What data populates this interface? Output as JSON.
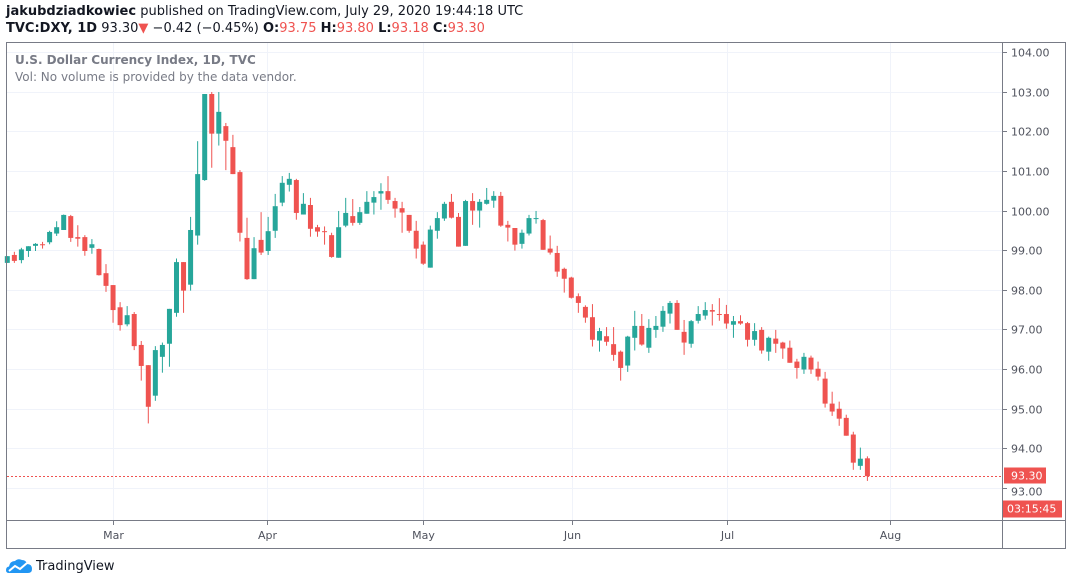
{
  "header": {
    "author": "jakubdziadkowiec",
    "published_text": "published on TradingView.com, July 29, 2020 19:44:18 UTC",
    "symbol": "TVC:DXY, 1D",
    "last": "93.30",
    "change": "−0.42 (−0.45%)",
    "o_label": "O:",
    "o": "93.75",
    "h_label": "H:",
    "h": "93.80",
    "l_label": "L:",
    "l": "93.18",
    "c_label": "C:",
    "c": "93.30"
  },
  "legend": {
    "title": "U.S. Dollar Currency Index, 1D, TVC",
    "volume_note": "Vol: No volume is provided by the data vendor."
  },
  "price_axis": {
    "last_price_label": "93.30",
    "countdown": "03:15:45"
  },
  "footer": {
    "brand": "TradingView"
  },
  "colors": {
    "up": "#26a69a",
    "down": "#ef5350",
    "grid": "#f0f3fa",
    "border": "#787b86"
  },
  "chart_data": {
    "type": "candlestick",
    "title": "U.S. Dollar Currency Index, 1D, TVC",
    "ylim": [
      92.25,
      104.25
    ],
    "yticks": [
      104,
      103,
      102,
      101,
      100,
      99,
      98,
      97,
      96,
      95,
      94,
      93
    ],
    "ytick_labels": [
      "104.00",
      "103.00",
      "102.00",
      "101.00",
      "100.00",
      "99.00",
      "98.00",
      "97.00",
      "96.00",
      "95.00",
      "94.00",
      "93.00"
    ],
    "xticks": [
      {
        "label": "Mar",
        "index": 15.0
      },
      {
        "label": "Apr",
        "index": 36.9
      },
      {
        "label": "May",
        "index": 59.0
      },
      {
        "label": "Jun",
        "index": 80.1
      },
      {
        "label": "Jul",
        "index": 102.1
      },
      {
        "label": "Aug",
        "index": 125.2
      }
    ],
    "last_price": 93.3,
    "ohlc_order": [
      "open",
      "high",
      "low",
      "close"
    ],
    "candles": [
      [
        98.68,
        98.85,
        98.68,
        98.85
      ],
      [
        98.88,
        98.96,
        98.68,
        98.73
      ],
      [
        98.75,
        99.06,
        98.67,
        99.02
      ],
      [
        98.98,
        99.1,
        98.83,
        99.1
      ],
      [
        99.11,
        99.18,
        98.98,
        99.16
      ],
      [
        99.15,
        99.21,
        99.04,
        99.14
      ],
      [
        99.2,
        99.49,
        99.15,
        99.46
      ],
      [
        99.42,
        99.73,
        99.36,
        99.58
      ],
      [
        99.51,
        99.9,
        99.51,
        99.89
      ],
      [
        99.86,
        99.89,
        99.21,
        99.31
      ],
      [
        99.33,
        99.63,
        99.09,
        99.29
      ],
      [
        99.33,
        99.38,
        98.86,
        98.98
      ],
      [
        99.06,
        99.28,
        98.91,
        99.15
      ],
      [
        99.03,
        99.04,
        98.36,
        98.37
      ],
      [
        98.42,
        98.65,
        97.95,
        98.1
      ],
      [
        98.12,
        98.12,
        97.17,
        97.49
      ],
      [
        97.56,
        97.69,
        96.97,
        97.11
      ],
      [
        97.13,
        97.59,
        97.08,
        97.36
      ],
      [
        97.39,
        97.44,
        96.48,
        96.58
      ],
      [
        96.61,
        96.71,
        95.71,
        96.08
      ],
      [
        96.1,
        96.1,
        94.63,
        95.05
      ],
      [
        95.33,
        96.58,
        95.2,
        96.48
      ],
      [
        96.31,
        96.67,
        95.91,
        96.61
      ],
      [
        96.64,
        97.52,
        96.06,
        97.52
      ],
      [
        97.42,
        98.79,
        97.32,
        98.7
      ],
      [
        98.7,
        98.7,
        97.42,
        97.98
      ],
      [
        98.13,
        99.84,
        97.98,
        99.51
      ],
      [
        99.37,
        101.75,
        99.14,
        100.92
      ],
      [
        100.77,
        102.94,
        100.75,
        102.94
      ],
      [
        102.94,
        102.99,
        101.08,
        101.94
      ],
      [
        101.94,
        102.99,
        101.64,
        102.49
      ],
      [
        102.13,
        102.21,
        101.02,
        101.76
      ],
      [
        101.6,
        101.91,
        100.92,
        100.92
      ],
      [
        100.97,
        101.02,
        99.22,
        99.44
      ],
      [
        99.31,
        99.82,
        98.25,
        98.27
      ],
      [
        98.27,
        99.33,
        98.27,
        99.05
      ],
      [
        99.26,
        99.96,
        98.88,
        98.94
      ],
      [
        98.98,
        99.84,
        98.88,
        99.48
      ],
      [
        99.49,
        100.42,
        99.31,
        100.11
      ],
      [
        100.2,
        100.87,
        100.11,
        100.7
      ],
      [
        100.65,
        100.95,
        100.48,
        100.8
      ],
      [
        100.77,
        100.8,
        99.77,
        99.94
      ],
      [
        99.9,
        100.44,
        99.9,
        100.17
      ],
      [
        100.14,
        100.32,
        99.34,
        99.54
      ],
      [
        99.58,
        99.64,
        99.34,
        99.47
      ],
      [
        99.48,
        99.6,
        99.14,
        99.47
      ],
      [
        99.38,
        99.44,
        98.81,
        98.83
      ],
      [
        98.81,
        99.99,
        98.81,
        99.58
      ],
      [
        99.62,
        100.32,
        99.58,
        99.94
      ],
      [
        99.86,
        100.29,
        99.62,
        99.69
      ],
      [
        99.69,
        100.09,
        99.64,
        99.96
      ],
      [
        99.92,
        100.49,
        99.92,
        100.22
      ],
      [
        100.2,
        100.49,
        99.9,
        100.34
      ],
      [
        100.43,
        100.69,
        100.02,
        100.49
      ],
      [
        100.49,
        100.87,
        100.17,
        100.27
      ],
      [
        100.24,
        100.32,
        99.82,
        100.05
      ],
      [
        100.06,
        100.22,
        99.44,
        99.95
      ],
      [
        99.89,
        99.89,
        99.44,
        99.49
      ],
      [
        99.49,
        99.74,
        98.79,
        99.04
      ],
      [
        99.14,
        99.22,
        98.63,
        98.66
      ],
      [
        98.56,
        99.62,
        98.56,
        99.52
      ],
      [
        99.49,
        99.96,
        99.29,
        99.81
      ],
      [
        99.8,
        100.22,
        99.74,
        100.17
      ],
      [
        100.22,
        100.42,
        99.8,
        99.82
      ],
      [
        99.84,
        99.94,
        99.09,
        99.09
      ],
      [
        99.11,
        100.27,
        99.11,
        100.24
      ],
      [
        100.24,
        100.44,
        99.64,
        100.0
      ],
      [
        100.0,
        100.29,
        99.57,
        100.22
      ],
      [
        100.17,
        100.57,
        100.15,
        100.27
      ],
      [
        100.25,
        100.49,
        100.07,
        100.37
      ],
      [
        100.37,
        100.47,
        99.59,
        99.62
      ],
      [
        99.64,
        99.74,
        99.22,
        99.57
      ],
      [
        99.56,
        99.56,
        98.99,
        99.14
      ],
      [
        99.16,
        99.52,
        99.04,
        99.44
      ],
      [
        99.42,
        99.89,
        99.37,
        99.81
      ],
      [
        99.79,
        99.99,
        99.67,
        99.81
      ],
      [
        99.76,
        99.79,
        99.01,
        99.01
      ],
      [
        99.04,
        99.37,
        98.89,
        98.94
      ],
      [
        98.93,
        99.11,
        98.33,
        98.46
      ],
      [
        98.53,
        98.56,
        97.93,
        98.28
      ],
      [
        98.31,
        98.33,
        97.78,
        97.8
      ],
      [
        97.84,
        97.91,
        97.42,
        97.67
      ],
      [
        97.57,
        97.61,
        97.17,
        97.3
      ],
      [
        97.31,
        97.64,
        96.57,
        96.74
      ],
      [
        96.72,
        97.04,
        96.44,
        96.96
      ],
      [
        96.83,
        97.06,
        96.59,
        96.69
      ],
      [
        96.63,
        97.06,
        96.21,
        96.36
      ],
      [
        96.44,
        96.47,
        95.71,
        96.03
      ],
      [
        96.09,
        96.84,
        95.93,
        96.82
      ],
      [
        96.79,
        97.47,
        96.47,
        97.09
      ],
      [
        97.09,
        97.39,
        96.59,
        96.62
      ],
      [
        96.54,
        97.26,
        96.41,
        97.04
      ],
      [
        96.99,
        97.34,
        96.79,
        97.09
      ],
      [
        97.07,
        97.59,
        96.94,
        97.47
      ],
      [
        97.4,
        97.72,
        97.15,
        97.67
      ],
      [
        97.67,
        97.74,
        96.99,
        96.99
      ],
      [
        96.94,
        97.24,
        96.36,
        96.67
      ],
      [
        96.64,
        97.24,
        96.54,
        97.21
      ],
      [
        97.22,
        97.59,
        97.15,
        97.39
      ],
      [
        97.35,
        97.69,
        97.25,
        97.49
      ],
      [
        97.49,
        97.64,
        97.1,
        97.45
      ],
      [
        97.39,
        97.79,
        97.22,
        97.37
      ],
      [
        97.39,
        97.62,
        97.02,
        97.15
      ],
      [
        97.12,
        97.34,
        96.79,
        97.21
      ],
      [
        97.21,
        97.36,
        97.12,
        97.15
      ],
      [
        97.16,
        97.19,
        96.57,
        96.74
      ],
      [
        96.74,
        97.16,
        96.59,
        96.96
      ],
      [
        96.99,
        97.06,
        96.39,
        96.47
      ],
      [
        96.44,
        96.82,
        96.21,
        96.79
      ],
      [
        96.77,
        96.99,
        96.41,
        96.64
      ],
      [
        96.67,
        96.69,
        96.26,
        96.52
      ],
      [
        96.54,
        96.72,
        96.16,
        96.16
      ],
      [
        96.19,
        96.26,
        95.76,
        96.03
      ],
      [
        95.99,
        96.41,
        95.88,
        96.31
      ],
      [
        96.29,
        96.34,
        95.88,
        95.99
      ],
      [
        96.01,
        96.19,
        95.71,
        95.81
      ],
      [
        95.76,
        95.93,
        95.03,
        95.13
      ],
      [
        95.13,
        95.43,
        94.82,
        94.93
      ],
      [
        95.0,
        95.18,
        94.57,
        94.75
      ],
      [
        94.77,
        94.85,
        94.32,
        94.32
      ],
      [
        94.35,
        94.42,
        93.46,
        93.64
      ],
      [
        93.56,
        94.02,
        93.46,
        93.74
      ],
      [
        93.75,
        93.8,
        93.18,
        93.3
      ]
    ]
  }
}
